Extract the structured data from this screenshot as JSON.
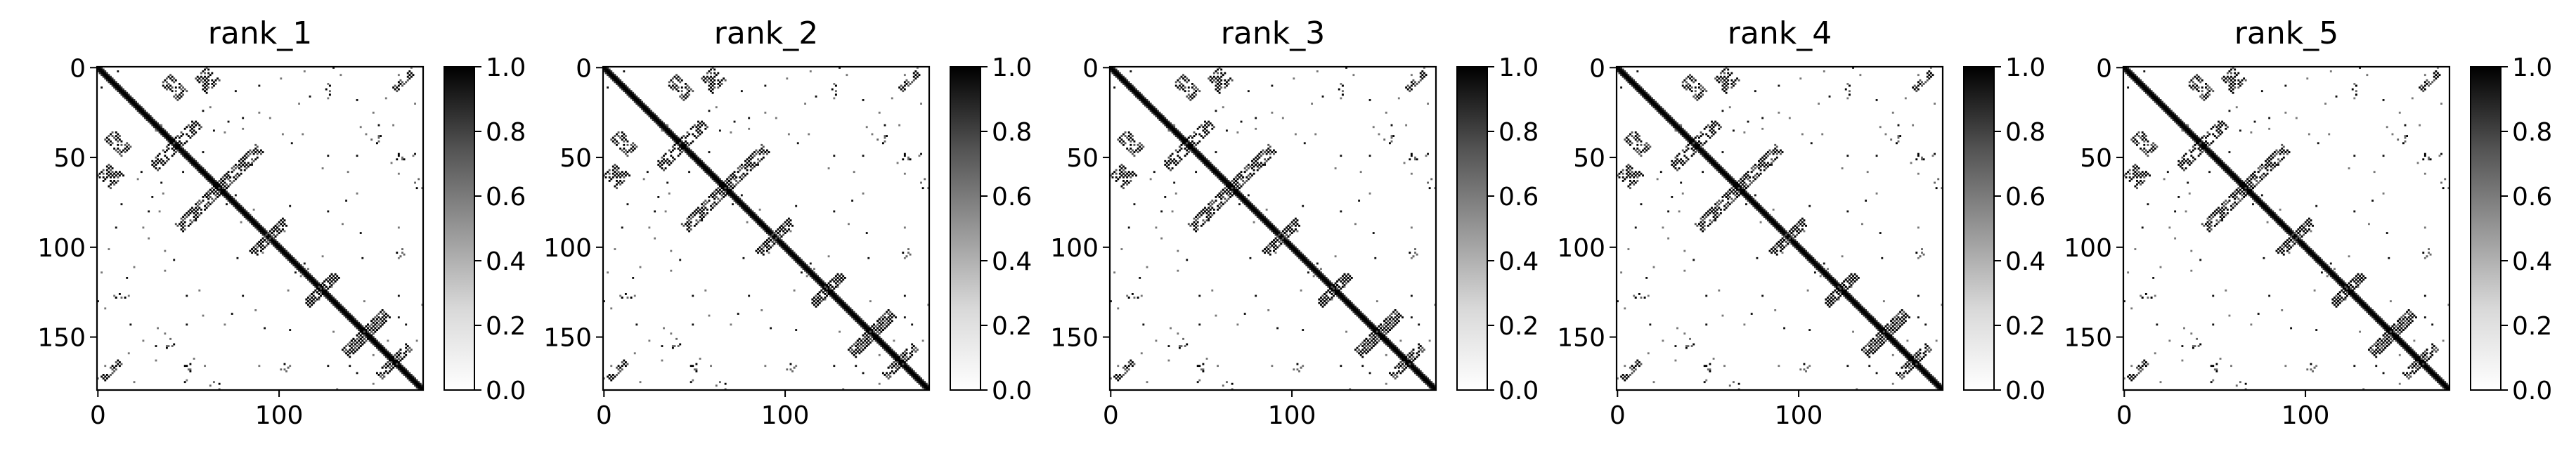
{
  "figure": {
    "panel_titles": [
      "rank_1",
      "rank_2",
      "rank_3",
      "rank_4",
      "rank_5"
    ],
    "colorbar_ticks": [
      "0.0",
      "0.2",
      "0.4",
      "0.6",
      "0.8",
      "1.0"
    ],
    "x_ticks": [
      "0",
      "100"
    ],
    "y_ticks": [
      "0",
      "50",
      "100",
      "150"
    ]
  },
  "chart_data": [
    {
      "type": "heatmap",
      "title": "rank_1",
      "colormap": "Greys",
      "vmin": 0.0,
      "vmax": 1.0,
      "matrix_size": 180,
      "x_ticks": [
        0,
        100
      ],
      "y_ticks": [
        0,
        50,
        100,
        150
      ],
      "colorbar_ticks": [
        0.0,
        0.2,
        0.4,
        0.6,
        0.8,
        1.0
      ],
      "contact_features": {
        "diagonal": [
          [
            0,
            179
          ]
        ],
        "strands": [
          [
            8,
            60,
            4,
            8
          ],
          [
            14,
            40,
            3,
            10
          ],
          [
            34,
            53,
            8,
            5
          ],
          [
            63,
            72,
            15,
            5
          ],
          [
            88,
            102,
            8,
            4
          ],
          [
            118,
            130,
            8,
            4
          ],
          [
            140,
            157,
            10,
            5
          ],
          [
            158,
            170,
            8,
            4
          ],
          [
            5,
            172,
            5,
            3
          ]
        ],
        "dots": [
          [
            48,
            170
          ],
          [
            10,
            130
          ],
          [
            37,
            156
          ],
          [
            100,
            170
          ],
          [
            62,
            180
          ]
        ]
      }
    },
    {
      "type": "heatmap",
      "title": "rank_2",
      "colormap": "Greys",
      "vmin": 0.0,
      "vmax": 1.0,
      "matrix_size": 180,
      "x_ticks": [
        0,
        100
      ],
      "y_ticks": [
        0,
        50,
        100,
        150
      ],
      "colorbar_ticks": [
        0.0,
        0.2,
        0.4,
        0.6,
        0.8,
        1.0
      ],
      "contact_features": {
        "diagonal": [
          [
            0,
            179
          ]
        ],
        "strands": [
          [
            8,
            60,
            4,
            8
          ],
          [
            14,
            40,
            3,
            10
          ],
          [
            34,
            53,
            8,
            5
          ],
          [
            63,
            72,
            15,
            5
          ],
          [
            88,
            102,
            8,
            4
          ],
          [
            118,
            130,
            8,
            4
          ],
          [
            140,
            157,
            10,
            5
          ],
          [
            158,
            170,
            8,
            4
          ],
          [
            5,
            172,
            5,
            3
          ]
        ],
        "dots": [
          [
            48,
            170
          ],
          [
            10,
            130
          ],
          [
            37,
            156
          ],
          [
            100,
            170
          ],
          [
            62,
            180
          ]
        ]
      }
    },
    {
      "type": "heatmap",
      "title": "rank_3",
      "colormap": "Greys",
      "vmin": 0.0,
      "vmax": 1.0,
      "matrix_size": 180,
      "x_ticks": [
        0,
        100
      ],
      "y_ticks": [
        0,
        50,
        100,
        150
      ],
      "colorbar_ticks": [
        0.0,
        0.2,
        0.4,
        0.6,
        0.8,
        1.0
      ],
      "contact_features": {
        "diagonal": [
          [
            0,
            179
          ]
        ],
        "strands": [
          [
            8,
            60,
            4,
            8
          ],
          [
            14,
            40,
            3,
            10
          ],
          [
            34,
            53,
            8,
            5
          ],
          [
            63,
            72,
            15,
            5
          ],
          [
            88,
            102,
            8,
            4
          ],
          [
            118,
            130,
            8,
            4
          ],
          [
            140,
            157,
            10,
            5
          ],
          [
            158,
            170,
            8,
            4
          ],
          [
            5,
            172,
            5,
            3
          ]
        ],
        "dots": [
          [
            48,
            170
          ],
          [
            10,
            130
          ],
          [
            37,
            156
          ],
          [
            100,
            170
          ],
          [
            62,
            180
          ]
        ]
      }
    },
    {
      "type": "heatmap",
      "title": "rank_4",
      "colormap": "Greys",
      "vmin": 0.0,
      "vmax": 1.0,
      "matrix_size": 180,
      "x_ticks": [
        0,
        100
      ],
      "y_ticks": [
        0,
        50,
        100,
        150
      ],
      "colorbar_ticks": [
        0.0,
        0.2,
        0.4,
        0.6,
        0.8,
        1.0
      ],
      "contact_features": {
        "diagonal": [
          [
            0,
            179
          ]
        ],
        "strands": [
          [
            8,
            60,
            4,
            8
          ],
          [
            14,
            40,
            3,
            10
          ],
          [
            34,
            53,
            8,
            5
          ],
          [
            63,
            72,
            15,
            5
          ],
          [
            88,
            102,
            8,
            4
          ],
          [
            118,
            130,
            8,
            4
          ],
          [
            140,
            157,
            10,
            5
          ],
          [
            158,
            170,
            8,
            4
          ],
          [
            5,
            172,
            5,
            3
          ]
        ],
        "dots": [
          [
            48,
            170
          ],
          [
            10,
            130
          ],
          [
            37,
            156
          ],
          [
            100,
            170
          ],
          [
            62,
            180
          ]
        ]
      }
    },
    {
      "type": "heatmap",
      "title": "rank_5",
      "colormap": "Greys",
      "vmin": 0.0,
      "vmax": 1.0,
      "matrix_size": 180,
      "x_ticks": [
        0,
        100
      ],
      "y_ticks": [
        0,
        50,
        100,
        150
      ],
      "colorbar_ticks": [
        0.0,
        0.2,
        0.4,
        0.6,
        0.8,
        1.0
      ],
      "contact_features": {
        "diagonal": [
          [
            0,
            179
          ]
        ],
        "strands": [
          [
            8,
            60,
            4,
            8
          ],
          [
            14,
            40,
            3,
            10
          ],
          [
            34,
            53,
            8,
            5
          ],
          [
            63,
            72,
            15,
            5
          ],
          [
            88,
            102,
            8,
            4
          ],
          [
            118,
            130,
            8,
            4
          ],
          [
            140,
            157,
            10,
            5
          ],
          [
            158,
            170,
            8,
            4
          ],
          [
            5,
            172,
            5,
            3
          ]
        ],
        "dots": [
          [
            48,
            170
          ],
          [
            10,
            130
          ],
          [
            37,
            156
          ],
          [
            100,
            170
          ],
          [
            62,
            180
          ]
        ]
      }
    }
  ]
}
